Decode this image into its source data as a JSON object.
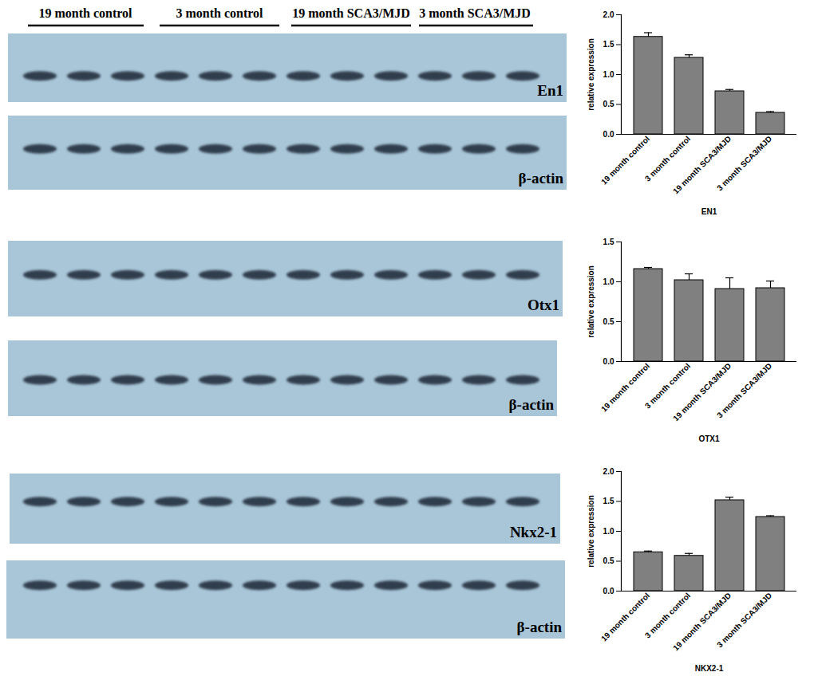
{
  "chart_data": [
    {
      "type": "bar",
      "x_label": "EN1",
      "y_label": "relative expression",
      "categories": [
        "19 month control",
        "3 month control",
        "19 month SCA3/MJD",
        "3 month SCA3/MJD"
      ],
      "values": [
        1.63,
        1.28,
        0.72,
        0.36
      ],
      "errors": [
        0.07,
        0.05,
        0.03,
        0.02
      ],
      "color": "#808080",
      "ylim": [
        0,
        2
      ],
      "yticks": [
        {
          "value": 0,
          "label": "0.0"
        },
        0.5,
        {
          "value": 1,
          "label": "1.0"
        },
        1.5,
        {
          "value": 2,
          "label": "2.0"
        }
      ]
    },
    {
      "type": "bar",
      "x_label": "OTX1",
      "y_label": "relative expression",
      "categories": [
        "19 month control",
        "3 month control",
        "19 month SCA3/MJD",
        "3 month SCA3/MJD"
      ],
      "values": [
        1.16,
        1.02,
        0.91,
        0.92
      ],
      "errors": [
        0.02,
        0.08,
        0.14,
        0.09
      ],
      "color": "#808080",
      "ylim": [
        0,
        1.5
      ],
      "yticks": [
        {
          "value": 0,
          "label": "0.0"
        },
        0.5,
        {
          "value": 1,
          "label": "1.0"
        },
        1.5
      ]
    },
    {
      "type": "bar",
      "x_label": "NKX2-1",
      "y_label": "relative expression",
      "categories": [
        "19 month control",
        "3 month control",
        "19 month SCA3/MJD",
        "3 month SCA3/MJD"
      ],
      "values": [
        0.65,
        0.59,
        1.52,
        1.24
      ],
      "errors": [
        0.02,
        0.04,
        0.05,
        0.02
      ],
      "color": "#808080",
      "ylim": [
        0,
        2
      ],
      "yticks": [
        {
          "value": 0,
          "label": "0.0"
        },
        0.5,
        {
          "value": 1,
          "label": "1.0"
        },
        1.5,
        {
          "value": 2,
          "label": "2.0"
        }
      ]
    }
  ],
  "blots": {
    "groups": [
      "19 month control",
      "3 month control",
      "19 month SCA3/MJD",
      "3 month SCA3/MJD"
    ],
    "panels": [
      {
        "label": "En1"
      },
      {
        "label": "β-actin"
      },
      {
        "label": "Otx1"
      },
      {
        "label": "β-actin"
      },
      {
        "label": "Nkx2-1"
      },
      {
        "label": "β-actin"
      }
    ]
  }
}
